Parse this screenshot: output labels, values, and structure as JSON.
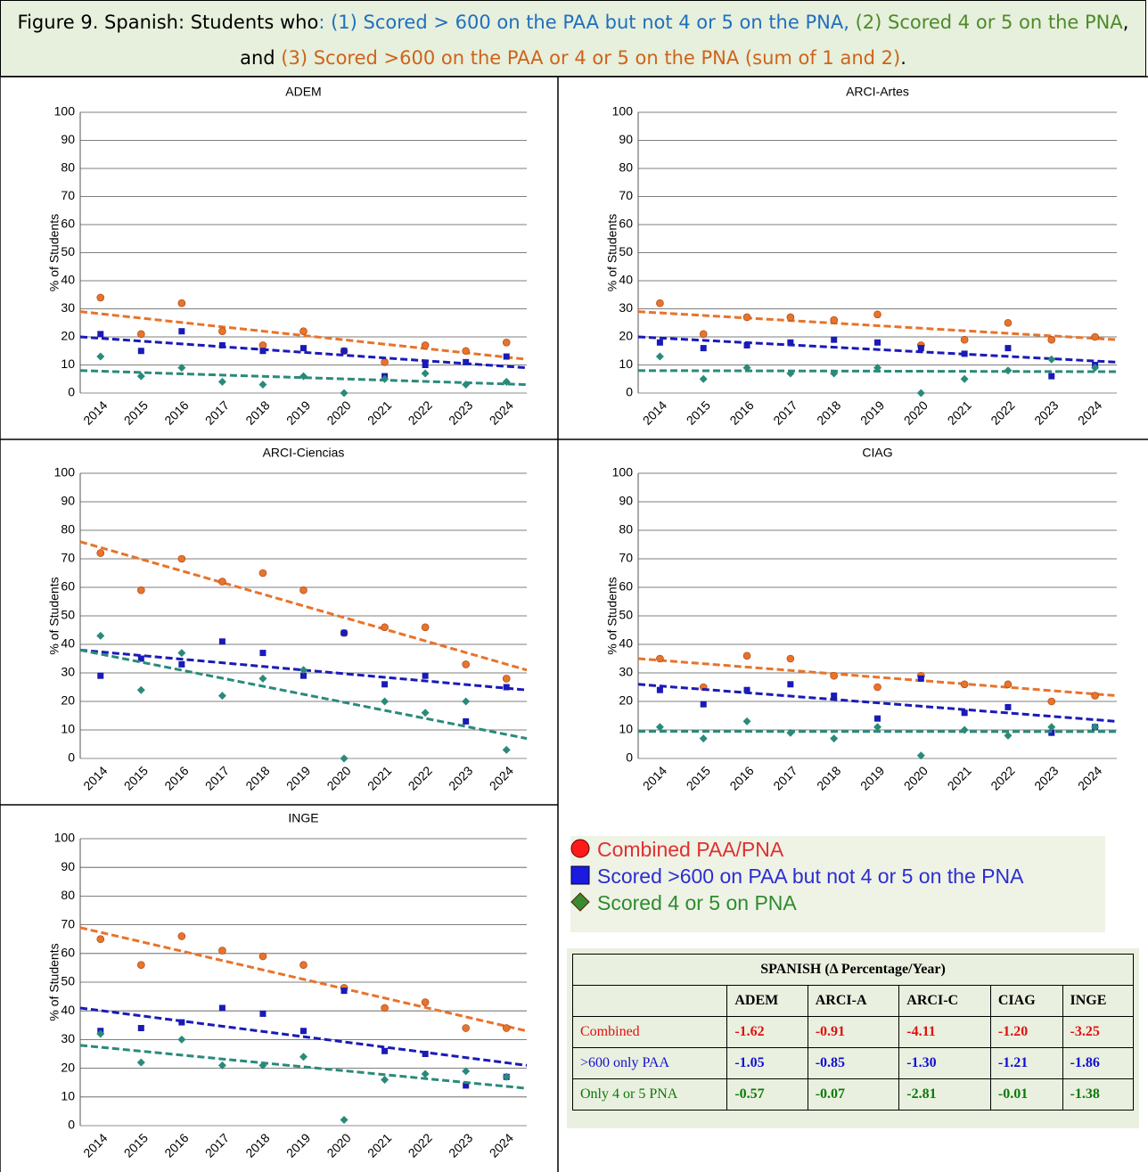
{
  "header": {
    "parts": [
      {
        "text": "Figure 9.  Spanish:  Students who",
        "color": "#000000"
      },
      {
        "text": ": (1) Scored > 600 on the PAA but not 4 or 5 on the PNA,",
        "color": "#1f6fc0"
      },
      {
        "text": " (2) Scored 4 or 5 on the PNA",
        "color": "#4e8a2a"
      },
      {
        "text": ", and ",
        "color": "#000000"
      },
      {
        "text": "(3) Scored >600 on the PAA or 4 or 5 on the PNA (sum of 1 and 2)",
        "color": "#d0621a"
      },
      {
        "text": ".",
        "color": "#000000"
      }
    ]
  },
  "chart_data": [
    {
      "type": "scatter",
      "title": "ADEM",
      "y_label": "% of Students",
      "categories": [
        "2014",
        "2015",
        "2016",
        "2017",
        "2018",
        "2019",
        "2020",
        "2021",
        "2022",
        "2023",
        "2024"
      ],
      "ylim": [
        0,
        100
      ],
      "yticks": [
        0,
        10,
        20,
        30,
        40,
        50,
        60,
        70,
        80,
        90,
        100
      ],
      "grid": true,
      "series": [
        {
          "color": "#e8732a",
          "marker": "circle",
          "values": [
            34,
            21,
            32,
            22,
            17,
            22,
            15,
            11,
            17,
            15,
            18
          ],
          "trend": [
            29,
            12
          ]
        },
        {
          "color": "#1a1ab8",
          "marker": "square",
          "values": [
            21,
            15,
            22,
            17,
            15,
            16,
            15,
            6,
            10,
            11,
            13
          ],
          "trend": [
            20,
            9
          ]
        },
        {
          "color": "#2a8a7a",
          "marker": "diamond",
          "values": [
            13,
            6,
            9,
            4,
            3,
            6,
            0,
            5,
            7,
            3,
            4
          ],
          "trend": [
            8,
            3
          ]
        }
      ]
    },
    {
      "type": "scatter",
      "title": "ARCI-Artes",
      "y_label": "% of Students",
      "categories": [
        "2014",
        "2015",
        "2016",
        "2017",
        "2018",
        "2019",
        "2020",
        "2021",
        "2022",
        "2023",
        "2024"
      ],
      "ylim": [
        0,
        100
      ],
      "yticks": [
        0,
        10,
        20,
        30,
        40,
        50,
        60,
        70,
        80,
        90,
        100
      ],
      "grid": true,
      "series": [
        {
          "color": "#e8732a",
          "marker": "circle",
          "values": [
            32,
            21,
            27,
            27,
            26,
            28,
            17,
            19,
            25,
            19,
            20
          ],
          "trend": [
            29,
            19
          ]
        },
        {
          "color": "#1a1ab8",
          "marker": "square",
          "values": [
            18,
            16,
            17,
            18,
            19,
            18,
            16,
            14,
            16,
            6,
            10
          ],
          "trend": [
            20,
            11
          ]
        },
        {
          "color": "#2a8a7a",
          "marker": "diamond",
          "values": [
            13,
            5,
            9,
            7,
            7,
            9,
            0,
            5,
            8,
            12,
            9
          ],
          "trend": [
            8,
            7.6
          ]
        }
      ]
    },
    {
      "type": "scatter",
      "title": "ARCI-Ciencias",
      "y_label": "% of Students",
      "categories": [
        "2014",
        "2015",
        "2016",
        "2017",
        "2018",
        "2019",
        "2020",
        "2021",
        "2022",
        "2023",
        "2024"
      ],
      "ylim": [
        0,
        100
      ],
      "yticks": [
        0,
        10,
        20,
        30,
        40,
        50,
        60,
        70,
        80,
        90,
        100
      ],
      "grid": true,
      "series": [
        {
          "color": "#e8732a",
          "marker": "circle",
          "values": [
            72,
            59,
            70,
            62,
            65,
            59,
            44,
            46,
            46,
            33,
            28
          ],
          "trend": [
            76,
            31
          ]
        },
        {
          "color": "#1a1ab8",
          "marker": "square",
          "values": [
            29,
            35,
            33,
            41,
            37,
            29,
            44,
            26,
            29,
            13,
            25
          ],
          "trend": [
            38,
            24
          ]
        },
        {
          "color": "#2a8a7a",
          "marker": "diamond",
          "values": [
            43,
            24,
            37,
            22,
            28,
            31,
            0,
            20,
            16,
            20,
            3
          ],
          "trend": [
            38,
            7
          ]
        }
      ]
    },
    {
      "type": "scatter",
      "title": "CIAG",
      "y_label": "% of Students",
      "categories": [
        "2014",
        "2015",
        "2016",
        "2017",
        "2018",
        "2019",
        "2020",
        "2021",
        "2022",
        "2023",
        "2024"
      ],
      "ylim": [
        0,
        100
      ],
      "yticks": [
        0,
        10,
        20,
        30,
        40,
        50,
        60,
        70,
        80,
        90,
        100
      ],
      "grid": true,
      "series": [
        {
          "color": "#e8732a",
          "marker": "circle",
          "values": [
            35,
            25,
            36,
            35,
            29,
            25,
            29,
            26,
            26,
            20,
            22
          ],
          "trend": [
            35,
            22
          ]
        },
        {
          "color": "#1a1ab8",
          "marker": "square",
          "values": [
            24,
            19,
            24,
            26,
            22,
            14,
            28,
            16,
            18,
            9,
            11
          ],
          "trend": [
            26,
            13
          ]
        },
        {
          "color": "#2a8a7a",
          "marker": "diamond",
          "values": [
            11,
            7,
            13,
            9,
            7,
            11,
            1,
            10,
            8,
            11,
            11
          ],
          "trend": [
            9.5,
            9.4
          ]
        }
      ]
    },
    {
      "type": "scatter",
      "title": "INGE",
      "y_label": "% of Students",
      "categories": [
        "2014",
        "2015",
        "2016",
        "2017",
        "2018",
        "2019",
        "2020",
        "2021",
        "2022",
        "2023",
        "2024"
      ],
      "ylim": [
        0,
        100
      ],
      "yticks": [
        0,
        10,
        20,
        30,
        40,
        50,
        60,
        70,
        80,
        90,
        100
      ],
      "grid": true,
      "series": [
        {
          "color": "#e8732a",
          "marker": "circle",
          "values": [
            65,
            56,
            66,
            61,
            59,
            56,
            48,
            41,
            43,
            34,
            34
          ],
          "trend": [
            69,
            33
          ]
        },
        {
          "color": "#1a1ab8",
          "marker": "square",
          "values": [
            33,
            34,
            36,
            41,
            39,
            33,
            47,
            26,
            25,
            14,
            17
          ],
          "trend": [
            41,
            21
          ]
        },
        {
          "color": "#2a8a7a",
          "marker": "diamond",
          "values": [
            32,
            22,
            30,
            21,
            21,
            24,
            2,
            16,
            18,
            19,
            17
          ],
          "trend": [
            28,
            13
          ]
        }
      ]
    }
  ],
  "legend": {
    "items": [
      {
        "text": "Combined PAA/PNA",
        "color": "#e03030"
      },
      {
        "text": "Scored >600 on PAA but not 4 or 5 on the PNA",
        "color": "#2d2dd0"
      },
      {
        "text": "Scored 4 or 5 on PNA",
        "color": "#2e8b2e"
      }
    ]
  },
  "table": {
    "title": "SPANISH (Δ Percentage/Year)",
    "header": [
      "",
      "ADEM",
      "ARCI-A",
      "ARCI-C",
      "CIAG",
      "INGE"
    ],
    "rows": [
      [
        "Combined",
        "-1.62",
        "-0.91",
        "-4.11",
        "-1.20",
        "-3.25"
      ],
      [
        ">600 only PAA",
        "-1.05",
        "-0.85",
        "-1.30",
        "-1.21",
        "-1.86"
      ],
      [
        "Only 4 or 5 PNA",
        "-0.57",
        "-0.07",
        "-2.81",
        "-0.01",
        "-1.38"
      ]
    ],
    "row_colors": [
      "#e01010",
      "#1010d0",
      "#0a7a0a"
    ]
  }
}
